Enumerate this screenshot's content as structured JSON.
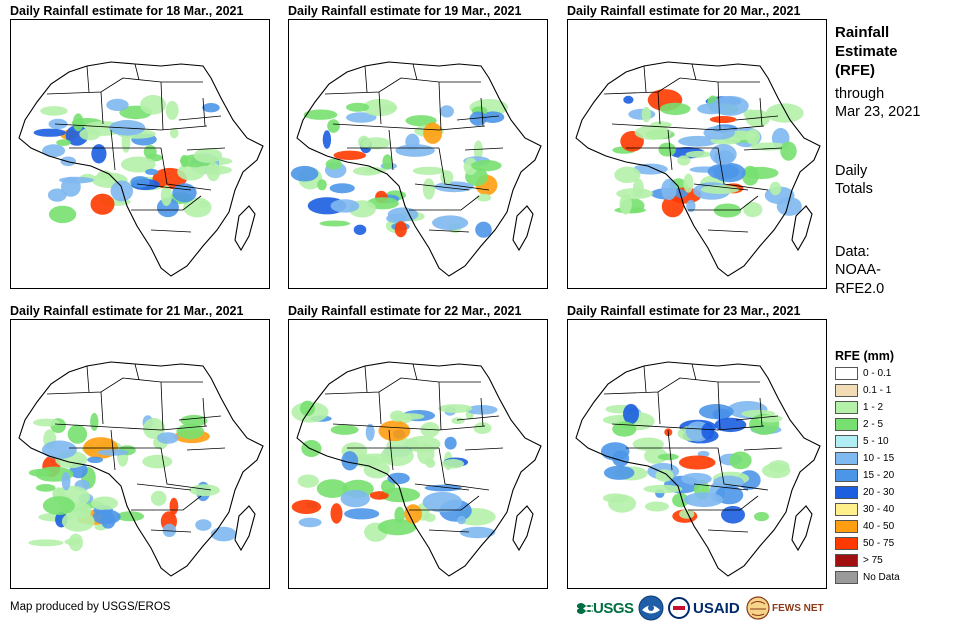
{
  "panels": [
    {
      "title": "Daily Rainfall estimate for 18 Mar., 2021"
    },
    {
      "title": "Daily Rainfall estimate for 19 Mar., 2021"
    },
    {
      "title": "Daily Rainfall estimate for 20 Mar., 2021"
    },
    {
      "title": "Daily Rainfall estimate for 21 Mar., 2021"
    },
    {
      "title": "Daily Rainfall estimate for 22 Mar., 2021"
    },
    {
      "title": "Daily Rainfall estimate for 23 Mar., 2021"
    }
  ],
  "side": {
    "title_line1": "Rainfall",
    "title_line2": "Estimate",
    "title_line3": "(RFE)",
    "through": "through",
    "date": "Mar 23, 2021",
    "daily_line1": "Daily",
    "daily_line2": "Totals",
    "data_line1": "Data:",
    "data_line2": "NOAA-",
    "data_line3": "RFE2.0"
  },
  "legend": {
    "title": "RFE (mm)",
    "items": [
      {
        "label": "0 - 0.1",
        "color": "#ffffff"
      },
      {
        "label": "0.1 - 1",
        "color": "#f2dcb5"
      },
      {
        "label": "1 - 2",
        "color": "#b4f0a8"
      },
      {
        "label": "2 - 5",
        "color": "#78e070"
      },
      {
        "label": "5 - 10",
        "color": "#b0eef4"
      },
      {
        "label": "10 - 15",
        "color": "#80b8f0"
      },
      {
        "label": "15 - 20",
        "color": "#4c96e8"
      },
      {
        "label": "20 - 30",
        "color": "#1c5ee0"
      },
      {
        "label": "30 - 40",
        "color": "#fff08c"
      },
      {
        "label": "40 - 50",
        "color": "#ff9e10"
      },
      {
        "label": "50 - 75",
        "color": "#ff3a00"
      },
      {
        "label": "> 75",
        "color": "#a01010"
      },
      {
        "label": "No Data",
        "color": "#9a9a9a"
      }
    ]
  },
  "footer": {
    "credit": "Map produced by USGS/EROS"
  },
  "logos": {
    "usgs": "USGS",
    "usaid": "USAID",
    "fews": "FEWS NET"
  }
}
